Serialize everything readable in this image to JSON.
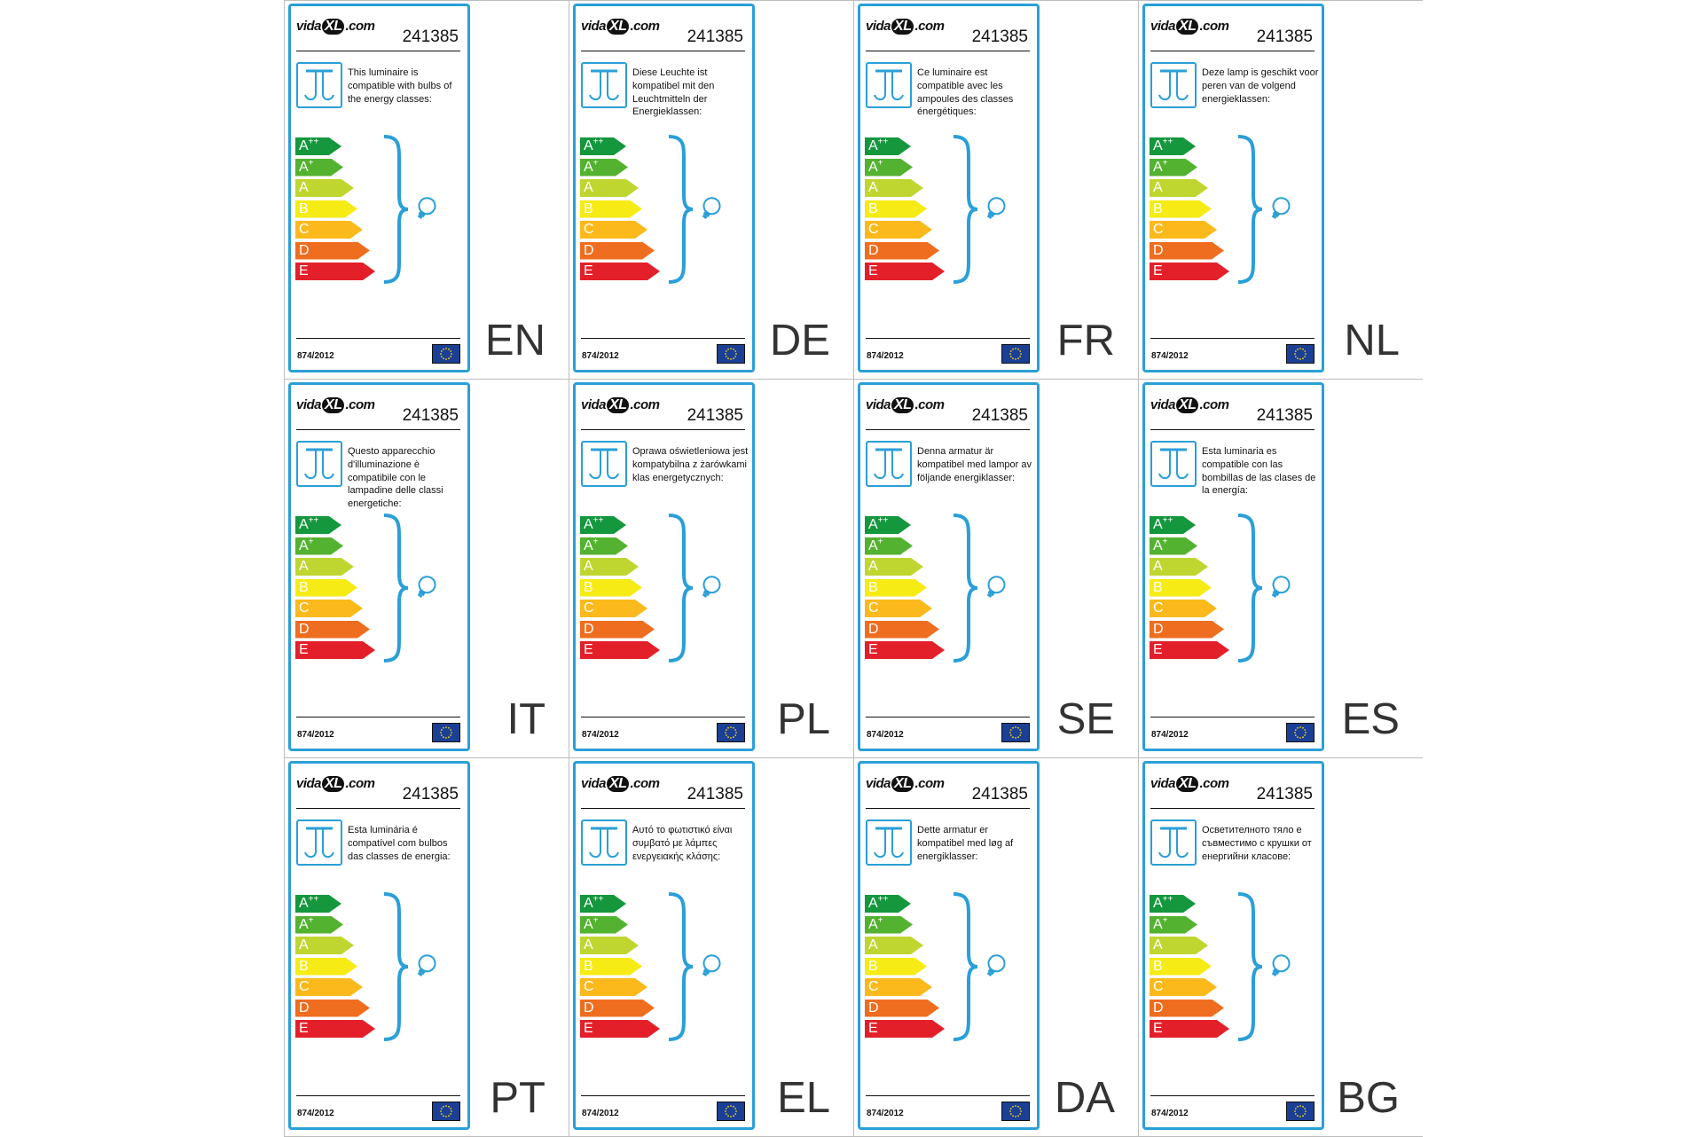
{
  "brand_text": "vidaXL.com",
  "brand_parts": {
    "pre": "vida",
    "mark": "XL",
    "post": ".com"
  },
  "product_code": "241385",
  "regulation": "874/2012",
  "energy_classes": [
    {
      "main": "A",
      "sup": "++",
      "color": "#14973d"
    },
    {
      "main": "A",
      "sup": "+",
      "color": "#53b22f"
    },
    {
      "main": "A",
      "sup": "",
      "color": "#bfd630"
    },
    {
      "main": "B",
      "sup": "",
      "color": "#f6eb14"
    },
    {
      "main": "C",
      "sup": "",
      "color": "#fbb91b"
    },
    {
      "main": "D",
      "sup": "",
      "color": "#ef6d1f"
    },
    {
      "main": "E",
      "sup": "",
      "color": "#e3202a"
    }
  ],
  "accent_color": "#2a9fd8",
  "icons": [
    "ceiling-lamp-icon",
    "curly-brace-icon",
    "bulb-icon",
    "eu-flag-icon"
  ],
  "labels": [
    {
      "lang": "EN",
      "text": "This luminaire is compatible with bulbs of the energy classes:"
    },
    {
      "lang": "DE",
      "text": "Diese Leuchte ist kompatibel mit den Leuchtmitteln der Energieklassen:"
    },
    {
      "lang": "FR",
      "text": "Ce luminaire est compatible avec les ampoules des classes énergétiques:"
    },
    {
      "lang": "NL",
      "text": "Deze lamp is geschikt voor peren van de volgend energieklassen:"
    },
    {
      "lang": "IT",
      "text": "Questo apparecchio d'illuminazione è compatibile con le lampadine delle classi energetiche:"
    },
    {
      "lang": "PL",
      "text": "Oprawa oświetleniowa jest kompatybilna z żarówkami klas energetycznych:"
    },
    {
      "lang": "SE",
      "text": "Denna armatur är kompatibel med lampor av följande energiklasser:"
    },
    {
      "lang": "ES",
      "text": "Esta luminaria es compatible con las bombillas de las clases de la energía:"
    },
    {
      "lang": "PT",
      "text": "Esta luminária é compatível com bulbos das classes de energia:"
    },
    {
      "lang": "EL",
      "text": "Αυτό το φωτιστικό είναι συμβατό με λάμπες ενεργειακής κλάσης:"
    },
    {
      "lang": "DA",
      "text": "Dette armatur er kompatibel med løg af energiklasser:"
    },
    {
      "lang": "BG",
      "text": "Осветителното тяло е съвместимо с крушки от енергийни класове:"
    }
  ]
}
